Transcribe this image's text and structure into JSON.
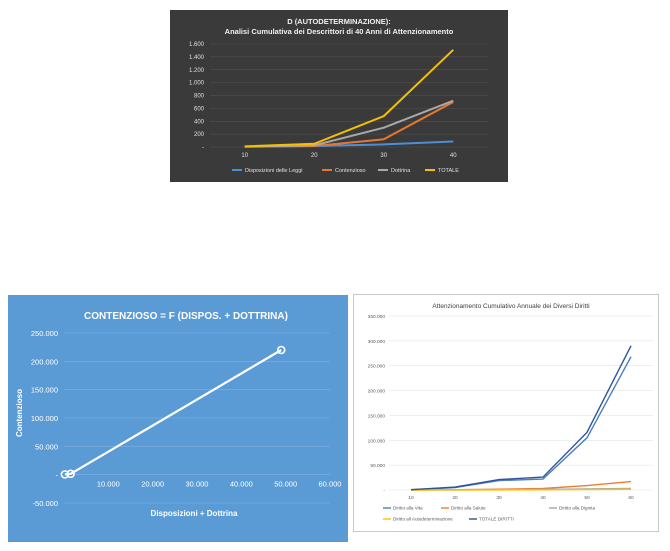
{
  "charts": [
    {
      "id": "chart1",
      "type": "line",
      "title": "D (AUTODETERMINAZIONE):",
      "subtitle": "Analisi Cumulativa dei Descrittori di 40 Anni di Attenzionamento",
      "categories": [
        "10",
        "20",
        "30",
        "40"
      ],
      "y_ticks": [
        "-",
        "200",
        "400",
        "600",
        "800",
        "1.000",
        "1.200",
        "1.400",
        "1.600"
      ],
      "ylim": [
        0,
        1600
      ],
      "series": [
        {
          "name": "Disposizioni delle Leggi",
          "color": "#4a8fd8",
          "values": [
            5,
            15,
            40,
            85
          ]
        },
        {
          "name": "Contenzioso",
          "color": "#e8772e",
          "values": [
            5,
            15,
            120,
            700
          ]
        },
        {
          "name": "Dottrina",
          "color": "#a8a8a8",
          "values": [
            5,
            25,
            300,
            720
          ]
        },
        {
          "name": "TOTALE",
          "color": "#f5c000",
          "values": [
            10,
            50,
            480,
            1510
          ]
        }
      ],
      "background": "#3a3a3a"
    },
    {
      "id": "chart2",
      "type": "scatter",
      "title": "CONTENZIOSO = F (DISPOS. + DOTTRINA)",
      "xlabel": "Disposizioni + Dottrina",
      "ylabel": "Contenzioso",
      "x_ticks": [
        "10.000",
        "20.000",
        "30.000",
        "40.000",
        "50.000",
        "60.000"
      ],
      "y_ticks": [
        "-50.000",
        "-",
        "50.000",
        "100.000",
        "150.000",
        "200.000",
        "250.000"
      ],
      "xlim": [
        0,
        60000
      ],
      "ylim": [
        -50000,
        250000
      ],
      "points": [
        {
          "x": 200,
          "y": 500
        },
        {
          "x": 1500,
          "y": 1500
        },
        {
          "x": 49000,
          "y": 220000
        }
      ],
      "background": "#5b9bd5"
    },
    {
      "id": "chart3",
      "type": "line",
      "title": "Attenzionamento Cumulativo Annuale dei Diversi Diritti",
      "categories": [
        "10",
        "20",
        "30",
        "40",
        "50",
        "60"
      ],
      "y_ticks": [
        "-",
        "50.000",
        "100.000",
        "150.000",
        "200.000",
        "250.000",
        "300.000",
        "350.000"
      ],
      "ylim": [
        0,
        350000
      ],
      "series": [
        {
          "name": "Diritto alla Vita",
          "color": "#4a7fc0",
          "values": [
            500,
            5000,
            19000,
            22000,
            105000,
            268000
          ]
        },
        {
          "name": "Diritto alla Salute",
          "color": "#ed7d31",
          "values": [
            100,
            500,
            1500,
            3000,
            9000,
            17000
          ]
        },
        {
          "name": "Diritto alla Dignita",
          "color": "#a5a5a5",
          "values": [
            50,
            200,
            500,
            1000,
            2000,
            3000
          ]
        },
        {
          "name": "Diritto all Autodeterminazione",
          "color": "#ffc000",
          "values": [
            10,
            50,
            200,
            400,
            800,
            1500
          ]
        },
        {
          "name": "TOTALE DIRITTI",
          "color": "#2f5597",
          "values": [
            700,
            5800,
            21000,
            26000,
            116000,
            290000
          ]
        }
      ],
      "background": "#ffffff"
    }
  ]
}
